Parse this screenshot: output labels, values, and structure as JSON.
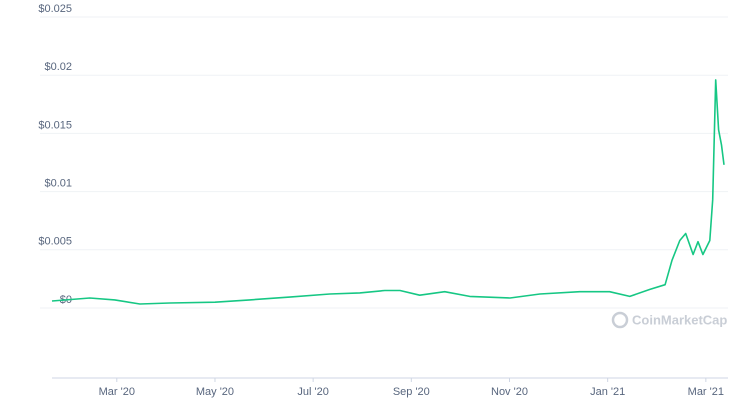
{
  "chart_data": {
    "type": "line",
    "watermark": "CoinMarketCap",
    "x": [
      0.68,
      1.45,
      1.96,
      2.47,
      3.08,
      4.0,
      4.71,
      5.52,
      6.34,
      6.95,
      7.46,
      7.77,
      8.17,
      8.68,
      9.19,
      10.01,
      10.62,
      11.43,
      12.04,
      12.45,
      12.86,
      13.17,
      13.31,
      13.47,
      13.59,
      13.74,
      13.84,
      13.94,
      14.08,
      14.14,
      14.2,
      14.26,
      14.32,
      14.37
    ],
    "series": [
      {
        "color": "#16c784",
        "values": [
          0.0006,
          0.00086,
          0.0007,
          0.00034,
          0.00043,
          0.0005,
          0.0007,
          0.00094,
          0.0012,
          0.0013,
          0.0015,
          0.0015,
          0.0011,
          0.0014,
          0.001,
          0.00086,
          0.0012,
          0.0014,
          0.0014,
          0.001,
          0.0016,
          0.002,
          0.0041,
          0.0058,
          0.0064,
          0.0046,
          0.0057,
          0.0046,
          0.0058,
          0.0093,
          0.0196,
          0.0153,
          0.014,
          0.0123
        ]
      }
    ],
    "xlim": [
      0.68,
      14.37
    ],
    "xticks": [
      {
        "value": 2,
        "label": "Mar '20"
      },
      {
        "value": 4,
        "label": "May '20"
      },
      {
        "value": 6,
        "label": "Jul '20"
      },
      {
        "value": 8,
        "label": "Sep '20"
      },
      {
        "value": 10,
        "label": "Nov '20"
      },
      {
        "value": 12,
        "label": "Jan '21"
      },
      {
        "value": 14,
        "label": "Mar '21"
      }
    ],
    "ylim": [
      0,
      0.025
    ],
    "yticks": [
      {
        "value": 0,
        "label": "$0"
      },
      {
        "value": 0.005,
        "label": "$0.005"
      },
      {
        "value": 0.01,
        "label": "$0.01"
      },
      {
        "value": 0.015,
        "label": "$0.015"
      },
      {
        "value": 0.02,
        "label": "$0.02"
      },
      {
        "value": 0.025,
        "label": "$0.025"
      }
    ],
    "grid": true
  }
}
